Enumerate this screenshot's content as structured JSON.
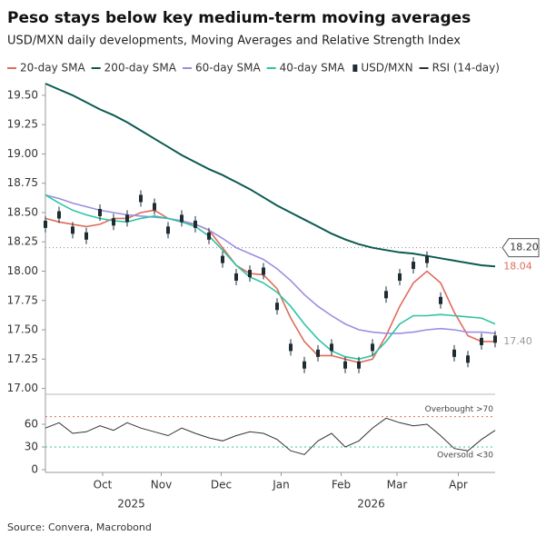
{
  "chart_data": [
    {
      "type": "line",
      "title": "Peso stays below key medium-term moving averages",
      "subtitle": "USD/MXN daily developments, Moving Averages and Relative Strength Index",
      "source": "Source: Convera, Macrobond",
      "xlim": [
        0,
        33
      ],
      "xticks": [
        {
          "value": 4.2,
          "label": "Oct"
        },
        {
          "value": 8.5,
          "label": "Nov"
        },
        {
          "value": 12.9,
          "label": "Dec"
        },
        {
          "value": 17.3,
          "label": "Jan"
        },
        {
          "value": 21.7,
          "label": "Feb"
        },
        {
          "value": 25.8,
          "label": "Mar"
        },
        {
          "value": 30.3,
          "label": "Apr"
        }
      ],
      "year_ticks": [
        {
          "value": 6.3,
          "label": "2025"
        },
        {
          "value": 23.9,
          "label": "2026"
        }
      ],
      "ylim": [
        16.95,
        19.6
      ],
      "yticks": [
        {
          "value": 17,
          "label": "17.00"
        },
        {
          "value": 17.25,
          "label": "17.25"
        },
        {
          "value": 17.5,
          "label": "17.50"
        },
        {
          "value": 17.75,
          "label": "17.75"
        },
        {
          "value": 18,
          "label": "18.00"
        },
        {
          "value": 18.25,
          "label": "18.25"
        },
        {
          "value": 18.5,
          "label": "18.50"
        },
        {
          "value": 18.75,
          "label": "18.75"
        },
        {
          "value": 19,
          "label": "19.00"
        },
        {
          "value": 19.25,
          "label": "19.25"
        },
        {
          "value": 19.5,
          "label": "19.50"
        }
      ],
      "series": [
        {
          "name": "20-day SMA",
          "color": "#e06c5a",
          "style": "line",
          "values": [
            18.45,
            18.42,
            18.4,
            18.38,
            18.4,
            18.45,
            18.45,
            18.5,
            18.52,
            18.45,
            18.42,
            18.4,
            18.35,
            18.2,
            18.05,
            17.98,
            17.97,
            17.85,
            17.6,
            17.4,
            17.28,
            17.28,
            17.25,
            17.22,
            17.25,
            17.45,
            17.7,
            17.9,
            18.0,
            17.9,
            17.65,
            17.45,
            17.4,
            17.4
          ]
        },
        {
          "name": "200-day SMA",
          "color": "#0b5a50",
          "style": "line",
          "values": [
            19.6,
            19.55,
            19.5,
            19.44,
            19.38,
            19.33,
            19.27,
            19.2,
            19.13,
            19.06,
            18.99,
            18.93,
            18.87,
            18.82,
            18.76,
            18.7,
            18.63,
            18.56,
            18.5,
            18.44,
            18.38,
            18.32,
            18.27,
            18.23,
            18.2,
            18.18,
            18.16,
            18.15,
            18.13,
            18.11,
            18.09,
            18.07,
            18.05,
            18.04
          ]
        },
        {
          "name": "60-day SMA",
          "color": "#9b8fe0",
          "style": "line",
          "values": [
            18.65,
            18.62,
            18.58,
            18.55,
            18.52,
            18.5,
            18.48,
            18.47,
            18.46,
            18.45,
            18.43,
            18.4,
            18.35,
            18.28,
            18.2,
            18.15,
            18.1,
            18.02,
            17.92,
            17.8,
            17.7,
            17.62,
            17.55,
            17.5,
            17.48,
            17.47,
            17.47,
            17.48,
            17.5,
            17.51,
            17.5,
            17.48,
            17.48,
            17.47
          ]
        },
        {
          "name": "40-day SMA",
          "color": "#2ec4a5",
          "style": "line",
          "values": [
            18.65,
            18.58,
            18.52,
            18.48,
            18.45,
            18.43,
            18.42,
            18.45,
            18.47,
            18.45,
            18.42,
            18.38,
            18.3,
            18.18,
            18.05,
            17.95,
            17.9,
            17.82,
            17.7,
            17.55,
            17.42,
            17.32,
            17.27,
            17.25,
            17.28,
            17.4,
            17.55,
            17.62,
            17.62,
            17.63,
            17.62,
            17.61,
            17.6,
            17.55
          ]
        },
        {
          "name": "USD/MXN",
          "color": "#1f2d33",
          "style": "candle",
          "values": [
            18.4,
            18.48,
            18.35,
            18.3,
            18.5,
            18.42,
            18.45,
            18.62,
            18.55,
            18.35,
            18.45,
            18.4,
            18.3,
            18.1,
            17.95,
            17.98,
            18.0,
            17.7,
            17.35,
            17.2,
            17.3,
            17.35,
            17.2,
            17.2,
            17.35,
            17.8,
            17.95,
            18.05,
            18.1,
            17.75,
            17.3,
            17.25,
            17.4,
            17.42
          ]
        }
      ],
      "annotations": [
        {
          "value": 18.2,
          "label": "18.20",
          "style": "box",
          "color": "#333333"
        },
        {
          "value": 18.04,
          "label": "18.04",
          "style": "text",
          "color": "#e06c5a"
        },
        {
          "value": 17.4,
          "label": "17.40",
          "style": "text",
          "color": "#999999"
        }
      ]
    },
    {
      "type": "line",
      "xlim": [
        0,
        33
      ],
      "ylim": [
        0,
        96
      ],
      "yticks": [
        0,
        30,
        60
      ],
      "series": [
        {
          "name": "RSI (14-day)",
          "color": "#333333",
          "style": "line",
          "values": [
            55,
            62,
            48,
            50,
            58,
            52,
            62,
            55,
            50,
            45,
            55,
            48,
            42,
            38,
            45,
            50,
            48,
            40,
            25,
            20,
            38,
            48,
            30,
            38,
            55,
            68,
            62,
            58,
            60,
            45,
            28,
            25,
            40,
            52
          ]
        }
      ],
      "annotations": [
        {
          "value": 70,
          "label": "Overbought >70",
          "color": "#e06c5a"
        },
        {
          "value": 30,
          "label": "Oversold <30",
          "color": "#2ec4a5"
        }
      ]
    }
  ]
}
